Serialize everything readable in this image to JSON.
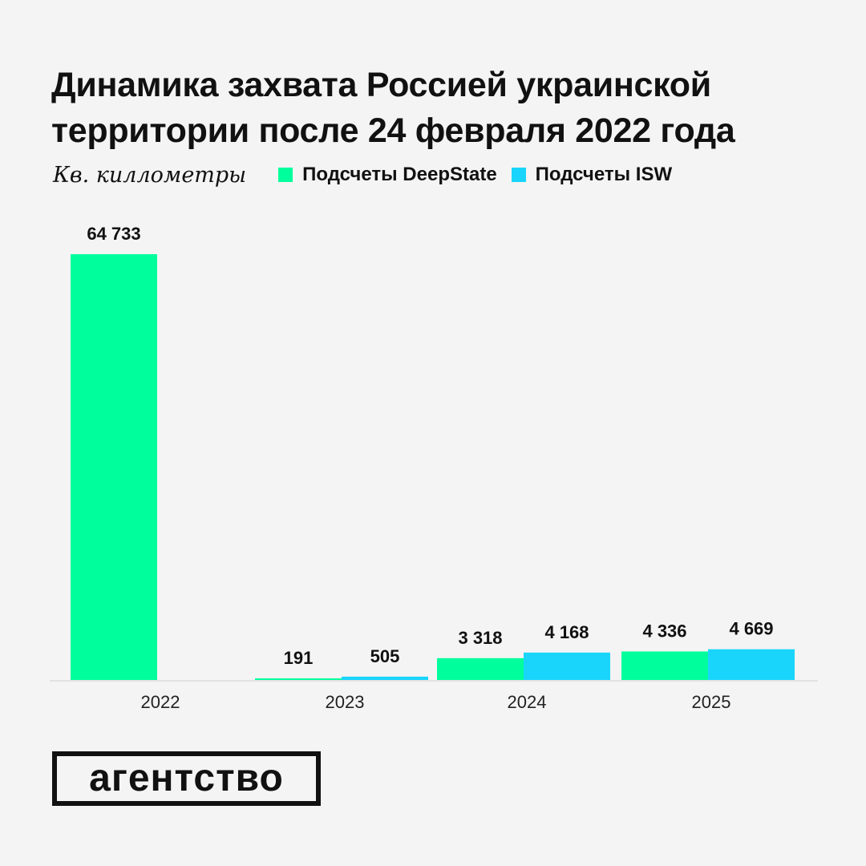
{
  "title": "Динамика захвата Россией украинской территории после 24 февраля 2022 года",
  "chart_data": {
    "type": "bar",
    "title": "Динамика захвата Россией украинской территории после 24 февраля 2022 года",
    "ylabel": "Кв. киллометры",
    "categories": [
      "2022",
      "2023",
      "2024",
      "2025"
    ],
    "series": [
      {
        "name": "Подсчеты DeepState",
        "color": "#00ff9c",
        "values": [
          64733,
          191,
          3318,
          4336
        ],
        "labels": [
          "64 733",
          "191",
          "3 318",
          "4 336"
        ]
      },
      {
        "name": "Подсчеты ISW",
        "color": "#1ad5fb",
        "values": [
          null,
          505,
          4168,
          4669
        ],
        "labels": [
          "",
          "505",
          "4 168",
          "4 669"
        ]
      }
    ],
    "ylim": [
      0,
      64733
    ],
    "grid": false,
    "legend_placement": "top-left"
  },
  "logo": "агентство"
}
